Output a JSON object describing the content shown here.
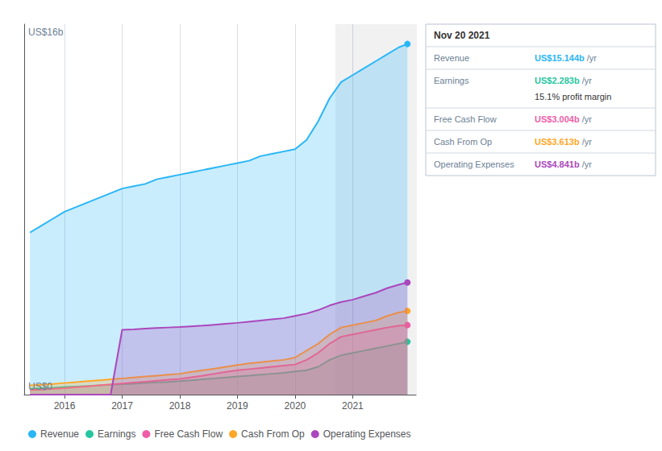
{
  "chart_data": {
    "type": "area",
    "x": [
      2015.4,
      2015.6,
      2015.8,
      2016.0,
      2016.2,
      2016.4,
      2016.6,
      2016.8,
      2017.0,
      2017.2,
      2017.4,
      2017.6,
      2017.8,
      2018.0,
      2018.2,
      2018.4,
      2018.6,
      2018.8,
      2019.0,
      2019.2,
      2019.4,
      2019.6,
      2019.8,
      2020.0,
      2020.2,
      2020.4,
      2020.6,
      2020.8,
      2021.0,
      2021.2,
      2021.4,
      2021.6,
      2021.8,
      2021.95
    ],
    "series": [
      {
        "name": "Revenue",
        "color": "#29b6f6",
        "values": [
          7.0,
          7.3,
          7.6,
          7.9,
          8.1,
          8.3,
          8.5,
          8.7,
          8.9,
          9.0,
          9.1,
          9.3,
          9.4,
          9.5,
          9.6,
          9.7,
          9.8,
          9.9,
          10.0,
          10.1,
          10.3,
          10.4,
          10.5,
          10.6,
          11.0,
          11.8,
          12.8,
          13.5,
          13.8,
          14.1,
          14.4,
          14.7,
          15.0,
          15.144
        ]
      },
      {
        "name": "Earnings",
        "color": "#26c6a0",
        "values": [
          0.25,
          0.28,
          0.3,
          0.33,
          0.35,
          0.37,
          0.4,
          0.43,
          0.45,
          0.47,
          0.5,
          0.53,
          0.55,
          0.58,
          0.62,
          0.66,
          0.7,
          0.74,
          0.78,
          0.82,
          0.86,
          0.9,
          0.94,
          1.0,
          1.05,
          1.2,
          1.5,
          1.7,
          1.8,
          1.9,
          2.0,
          2.1,
          2.2,
          2.283
        ]
      },
      {
        "name": "Free Cash Flow",
        "color": "#ef5da8",
        "values": [
          0.2,
          0.22,
          0.25,
          0.28,
          0.32,
          0.36,
          0.4,
          0.44,
          0.48,
          0.52,
          0.56,
          0.6,
          0.64,
          0.68,
          0.75,
          0.82,
          0.9,
          0.98,
          1.05,
          1.1,
          1.15,
          1.2,
          1.25,
          1.3,
          1.5,
          1.8,
          2.2,
          2.5,
          2.6,
          2.7,
          2.8,
          2.9,
          2.97,
          3.004
        ]
      },
      {
        "name": "Cash From Op",
        "color": "#ffa726",
        "values": [
          0.4,
          0.43,
          0.46,
          0.5,
          0.54,
          0.58,
          0.62,
          0.66,
          0.7,
          0.74,
          0.78,
          0.82,
          0.86,
          0.9,
          0.98,
          1.05,
          1.12,
          1.2,
          1.28,
          1.35,
          1.4,
          1.45,
          1.5,
          1.6,
          1.9,
          2.2,
          2.6,
          2.9,
          3.0,
          3.1,
          3.2,
          3.4,
          3.55,
          3.613
        ]
      },
      {
        "name": "Operating Expenses",
        "color": "#ab47bc",
        "values": [
          0.0,
          0.0,
          0.0,
          0.0,
          0.0,
          0.0,
          0.0,
          0.0,
          2.8,
          2.82,
          2.85,
          2.88,
          2.9,
          2.92,
          2.95,
          2.98,
          3.02,
          3.06,
          3.1,
          3.15,
          3.2,
          3.25,
          3.3,
          3.4,
          3.5,
          3.65,
          3.85,
          4.0,
          4.1,
          4.25,
          4.4,
          4.6,
          4.75,
          4.841
        ]
      }
    ],
    "xlim": [
      2015.3,
      2022.1
    ],
    "xticks": [
      2016,
      2017,
      2018,
      2019,
      2020,
      2021
    ],
    "ylim": [
      0,
      16
    ],
    "grid": true,
    "tick_labels": "x",
    "legend": "lower left",
    "annotations": [
      {
        "text": "US$16b",
        "y": 16
      },
      {
        "text": "US$0",
        "y": 0
      }
    ],
    "highlight": {
      "from": 2020.7,
      "to": 2023.1
    },
    "table": {
      "title": "Nov 20 2021",
      "rows": [
        {
          "label": "Revenue",
          "value": "US$15.144b",
          "color": "#29b6f6",
          "unit": "/yr"
        },
        {
          "label": "Earnings",
          "value": "US$2.283b",
          "color": "#26c6a0",
          "unit": "/yr",
          "sub_value": "15.1% profit margin"
        },
        {
          "label": "Free Cash Flow",
          "value": "US$3.004b",
          "color": "#ef5da8",
          "unit": "/yr"
        },
        {
          "label": "Cash From Op",
          "value": "US$3.613b",
          "color": "#ffa726",
          "unit": "/yr"
        },
        {
          "label": "Operating Expenses",
          "value": "US$4.841b",
          "color": "#ab47bc",
          "unit": "/yr"
        }
      ]
    }
  }
}
